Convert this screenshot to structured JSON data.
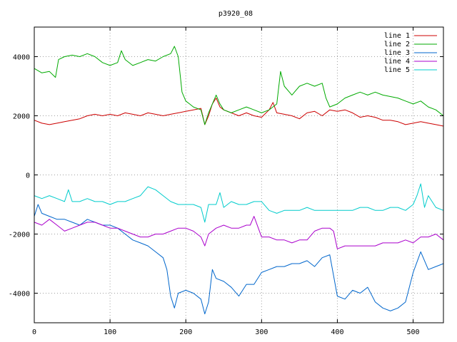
{
  "chart_data": {
    "type": "line",
    "title": "p3920_08",
    "xlabel": "",
    "ylabel": "",
    "xlim": [
      0,
      540
    ],
    "ylim": [
      -5000,
      5000
    ],
    "xticks": [
      0,
      100,
      200,
      300,
      400,
      500
    ],
    "yticks": [
      -4000,
      -2000,
      0,
      2000,
      4000
    ],
    "grid": true,
    "legend_position": "top-right",
    "series": [
      {
        "name": "line 1",
        "color": "#cc0000",
        "x": [
          0,
          10,
          20,
          30,
          40,
          50,
          60,
          70,
          80,
          90,
          100,
          110,
          120,
          130,
          140,
          150,
          160,
          170,
          180,
          190,
          200,
          210,
          220,
          225,
          230,
          235,
          240,
          245,
          250,
          260,
          270,
          280,
          290,
          300,
          310,
          315,
          320,
          330,
          340,
          350,
          360,
          370,
          380,
          390,
          400,
          410,
          420,
          430,
          440,
          450,
          460,
          470,
          480,
          490,
          500,
          510,
          520,
          530,
          540
        ],
        "y": [
          1850,
          1750,
          1700,
          1750,
          1800,
          1850,
          1900,
          2000,
          2050,
          2000,
          2050,
          2000,
          2100,
          2050,
          2000,
          2100,
          2050,
          2000,
          2050,
          2100,
          2150,
          2200,
          2250,
          1700,
          2000,
          2400,
          2600,
          2300,
          2200,
          2100,
          2000,
          2100,
          2000,
          1950,
          2200,
          2450,
          2100,
          2050,
          2000,
          1900,
          2100,
          2150,
          2000,
          2200,
          2150,
          2200,
          2100,
          1950,
          2000,
          1950,
          1850,
          1850,
          1800,
          1700,
          1750,
          1800,
          1750,
          1700,
          1650
        ]
      },
      {
        "name": "line 2",
        "color": "#00aa00",
        "x": [
          0,
          10,
          20,
          28,
          32,
          40,
          50,
          60,
          70,
          80,
          90,
          100,
          110,
          115,
          120,
          130,
          140,
          150,
          160,
          170,
          180,
          185,
          190,
          195,
          200,
          205,
          210,
          220,
          225,
          230,
          235,
          240,
          245,
          250,
          260,
          270,
          280,
          290,
          300,
          310,
          320,
          325,
          330,
          340,
          350,
          360,
          370,
          380,
          385,
          390,
          400,
          410,
          420,
          430,
          440,
          450,
          460,
          470,
          480,
          490,
          500,
          510,
          520,
          530,
          540
        ],
        "y": [
          3600,
          3450,
          3500,
          3300,
          3900,
          4000,
          4050,
          4000,
          4100,
          4000,
          3800,
          3700,
          3800,
          4200,
          3900,
          3700,
          3800,
          3900,
          3850,
          4000,
          4100,
          4350,
          4000,
          2800,
          2500,
          2400,
          2300,
          2200,
          1700,
          2100,
          2400,
          2700,
          2400,
          2200,
          2100,
          2200,
          2300,
          2200,
          2100,
          2200,
          2400,
          3500,
          3000,
          2700,
          3000,
          3100,
          3000,
          3100,
          2600,
          2300,
          2400,
          2600,
          2700,
          2800,
          2700,
          2800,
          2700,
          2650,
          2600,
          2500,
          2400,
          2500,
          2300,
          2200,
          2000
        ]
      },
      {
        "name": "line 3",
        "color": "#0066cc",
        "x": [
          0,
          5,
          10,
          20,
          30,
          40,
          50,
          60,
          70,
          80,
          90,
          100,
          110,
          120,
          130,
          140,
          150,
          160,
          170,
          175,
          180,
          185,
          190,
          200,
          210,
          220,
          225,
          230,
          235,
          240,
          250,
          260,
          270,
          280,
          290,
          300,
          310,
          320,
          330,
          340,
          350,
          360,
          370,
          380,
          390,
          400,
          410,
          420,
          430,
          440,
          450,
          460,
          470,
          480,
          490,
          500,
          510,
          520,
          530,
          540
        ],
        "y": [
          -1400,
          -1000,
          -1300,
          -1400,
          -1500,
          -1500,
          -1600,
          -1700,
          -1500,
          -1600,
          -1700,
          -1700,
          -1800,
          -2000,
          -2200,
          -2300,
          -2400,
          -2600,
          -2800,
          -3200,
          -4100,
          -4500,
          -4000,
          -3900,
          -4000,
          -4200,
          -4700,
          -4300,
          -3200,
          -3500,
          -3600,
          -3800,
          -4100,
          -3700,
          -3700,
          -3300,
          -3200,
          -3100,
          -3100,
          -3000,
          -3000,
          -2900,
          -3100,
          -2800,
          -2700,
          -4100,
          -4200,
          -3900,
          -4000,
          -3800,
          -4300,
          -4500,
          -4600,
          -4500,
          -4300,
          -3300,
          -2600,
          -3200,
          -3100,
          -3000
        ]
      },
      {
        "name": "line 4",
        "color": "#aa00cc",
        "x": [
          0,
          10,
          20,
          30,
          40,
          50,
          60,
          70,
          80,
          90,
          100,
          110,
          120,
          130,
          140,
          150,
          160,
          170,
          180,
          190,
          200,
          210,
          220,
          225,
          230,
          240,
          250,
          260,
          270,
          280,
          285,
          290,
          300,
          310,
          320,
          330,
          340,
          350,
          360,
          370,
          380,
          390,
          395,
          400,
          410,
          420,
          430,
          440,
          450,
          460,
          470,
          480,
          490,
          500,
          510,
          520,
          530,
          540
        ],
        "y": [
          -1600,
          -1700,
          -1500,
          -1700,
          -1900,
          -1800,
          -1700,
          -1600,
          -1600,
          -1700,
          -1800,
          -1800,
          -1900,
          -2000,
          -2100,
          -2100,
          -2000,
          -2000,
          -1900,
          -1800,
          -1800,
          -1900,
          -2100,
          -2400,
          -2000,
          -1800,
          -1700,
          -1800,
          -1800,
          -1700,
          -1700,
          -1400,
          -2100,
          -2100,
          -2200,
          -2200,
          -2300,
          -2200,
          -2200,
          -1900,
          -1800,
          -1800,
          -1900,
          -2500,
          -2400,
          -2400,
          -2400,
          -2400,
          -2400,
          -2300,
          -2300,
          -2300,
          -2200,
          -2300,
          -2100,
          -2100,
          -2000,
          -2200
        ]
      },
      {
        "name": "line 5",
        "color": "#00cccc",
        "x": [
          0,
          10,
          20,
          30,
          40,
          45,
          50,
          60,
          70,
          80,
          90,
          100,
          110,
          120,
          130,
          140,
          150,
          160,
          170,
          180,
          190,
          200,
          210,
          220,
          225,
          230,
          240,
          245,
          250,
          260,
          270,
          280,
          290,
          300,
          310,
          320,
          330,
          340,
          350,
          360,
          370,
          380,
          390,
          400,
          410,
          420,
          430,
          440,
          450,
          460,
          470,
          480,
          490,
          500,
          505,
          510,
          515,
          520,
          530,
          540
        ],
        "y": [
          -700,
          -800,
          -700,
          -800,
          -900,
          -500,
          -900,
          -900,
          -800,
          -900,
          -900,
          -1000,
          -900,
          -900,
          -800,
          -700,
          -400,
          -500,
          -700,
          -900,
          -1000,
          -1000,
          -1000,
          -1100,
          -1600,
          -1000,
          -1000,
          -600,
          -1100,
          -900,
          -1000,
          -1000,
          -900,
          -900,
          -1200,
          -1300,
          -1200,
          -1200,
          -1200,
          -1100,
          -1200,
          -1200,
          -1200,
          -1200,
          -1200,
          -1200,
          -1100,
          -1100,
          -1200,
          -1200,
          -1100,
          -1100,
          -1200,
          -1000,
          -700,
          -300,
          -1100,
          -700,
          -1100,
          -1200
        ]
      }
    ]
  }
}
